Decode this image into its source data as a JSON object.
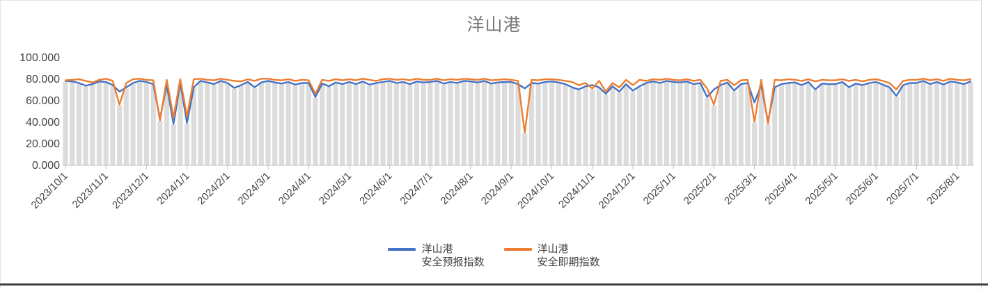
{
  "title": "洋山港",
  "legend": {
    "items": [
      {
        "label_line1": "洋山港",
        "label_line2": "安全预报指数",
        "color": "#4472C4"
      },
      {
        "label_line1": "洋山港",
        "label_line2": "安全即期指数",
        "color": "#ED7D31"
      }
    ]
  },
  "colors": {
    "series_forecast_blue": "#4472C4",
    "series_spot_orange": "#ED7D31",
    "background_bars_gray": "#dcdcdc",
    "axis_line": "#bfbfbf",
    "tick_label": "#454545",
    "title_gray": "#777777"
  },
  "chart_data": {
    "type": "line",
    "title": "洋山港",
    "xlabel": "",
    "ylabel": "",
    "ylim": [
      0,
      100
    ],
    "grid": false,
    "legend_position": "bottom",
    "x_start": "2023/10/1",
    "x_sample_interval_days": 5,
    "x_tick_labels": [
      "2023/10/1",
      "2023/11/1",
      "2023/12/1",
      "2024/1/1",
      "2024/2/1",
      "2024/3/1",
      "2024/4/1",
      "2024/5/1",
      "2024/6/1",
      "2024/7/1",
      "2024/8/1",
      "2024/9/1",
      "2024/10/1",
      "2024/11/1",
      "2024/12/1",
      "2025/1/1",
      "2025/2/1",
      "2025/3/1",
      "2025/4/1",
      "2025/5/1",
      "2025/6/1",
      "2025/7/1",
      "2025/8/1"
    ],
    "y_ticks": [
      100,
      80,
      60,
      40,
      20,
      0
    ],
    "y_tick_labels": [
      "100.000",
      "80.000",
      "60.000",
      "40.000",
      "20.000",
      "0.000"
    ],
    "background_bars": {
      "color": "#dcdcdc",
      "derivation": "min(series values) - 0.8, drawn from 0"
    },
    "series": [
      {
        "name": "洋山港安全预报指数",
        "color": "#4472C4",
        "values": [
          78,
          77.5,
          76,
          73.5,
          75,
          77.5,
          77,
          74,
          68,
          72,
          76,
          78,
          77,
          75,
          43,
          74,
          38,
          76,
          39,
          72,
          78,
          76.5,
          75,
          78,
          76,
          71.5,
          74,
          77,
          72,
          76.5,
          78,
          76.5,
          75.5,
          77,
          74.5,
          76,
          76,
          63,
          75.5,
          73,
          76.5,
          75,
          77,
          75,
          77.5,
          74.5,
          76,
          77,
          78,
          76,
          77,
          75,
          77.5,
          76.5,
          77,
          78,
          75.5,
          77,
          76,
          78,
          77.5,
          76.5,
          78,
          75.5,
          76.5,
          77,
          77,
          75,
          71,
          76,
          75.5,
          77,
          77.5,
          76.5,
          75,
          72,
          70,
          73,
          74,
          72,
          66,
          73,
          68,
          75,
          69,
          73,
          76,
          77.5,
          76,
          78,
          77,
          76.5,
          77.5,
          75,
          76,
          63,
          70,
          74,
          76.5,
          69,
          75,
          76,
          58,
          74,
          40,
          72,
          75,
          76,
          76.5,
          74,
          77,
          70,
          75.5,
          75,
          75,
          77,
          72,
          75.5,
          74,
          76,
          77,
          74.5,
          72,
          64,
          74,
          76,
          76,
          78,
          75,
          77,
          74.5,
          77.5,
          76.5,
          75,
          77.5
        ]
      },
      {
        "name": "洋山港安全即期指数",
        "color": "#ED7D31",
        "values": [
          78.5,
          79,
          79.5,
          78,
          76.5,
          79,
          80,
          78,
          56,
          76,
          79.5,
          80,
          79,
          78.5,
          41,
          79,
          44,
          79.5,
          45,
          79.5,
          80,
          79,
          78.5,
          80,
          79,
          78,
          77.5,
          79.5,
          78,
          80,
          80,
          79,
          78.5,
          79.5,
          78,
          79,
          78.5,
          66,
          79,
          78,
          79.5,
          78.5,
          79.5,
          78.5,
          80,
          79,
          78,
          79.5,
          80,
          79,
          79.5,
          78.5,
          80,
          79,
          79,
          80,
          78.5,
          79.5,
          79,
          80,
          79.5,
          79,
          80,
          78.5,
          79,
          79.5,
          79,
          78,
          30,
          79,
          78.5,
          79.5,
          79.5,
          79,
          78,
          77,
          74,
          76,
          71,
          78,
          68,
          76,
          72,
          79,
          74,
          79,
          78,
          79.5,
          79,
          80,
          79,
          78.5,
          79.5,
          78,
          79,
          71,
          56,
          78,
          79,
          74,
          78.5,
          79,
          40,
          79,
          38,
          79,
          78.5,
          79.5,
          79,
          78,
          79.5,
          77.5,
          79,
          78.5,
          78.5,
          79.5,
          78,
          79,
          77.5,
          79,
          79.5,
          78,
          76,
          70,
          78,
          79,
          79,
          80,
          78.5,
          79.5,
          78,
          80,
          79,
          78.5,
          79.5
        ]
      }
    ]
  }
}
